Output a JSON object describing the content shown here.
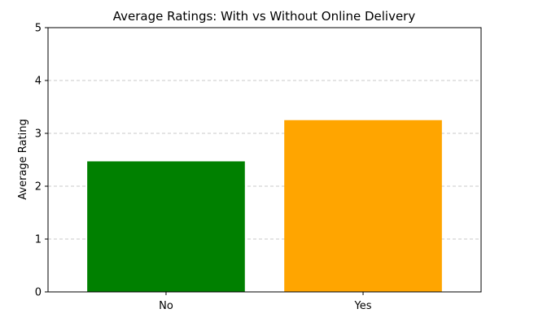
{
  "chart_data": {
    "type": "bar",
    "title": "Average Ratings: With vs Without Online Delivery",
    "xlabel": "",
    "ylabel": "Average Rating",
    "categories": [
      "No",
      "Yes"
    ],
    "values": [
      2.47,
      3.25
    ],
    "bar_colors": [
      "#008000",
      "#ffa500"
    ],
    "ylim": [
      0,
      5
    ],
    "yticks": [
      "0",
      "1",
      "2",
      "3",
      "4",
      "5"
    ],
    "grid": "y-axis dashed",
    "legend": "none"
  }
}
